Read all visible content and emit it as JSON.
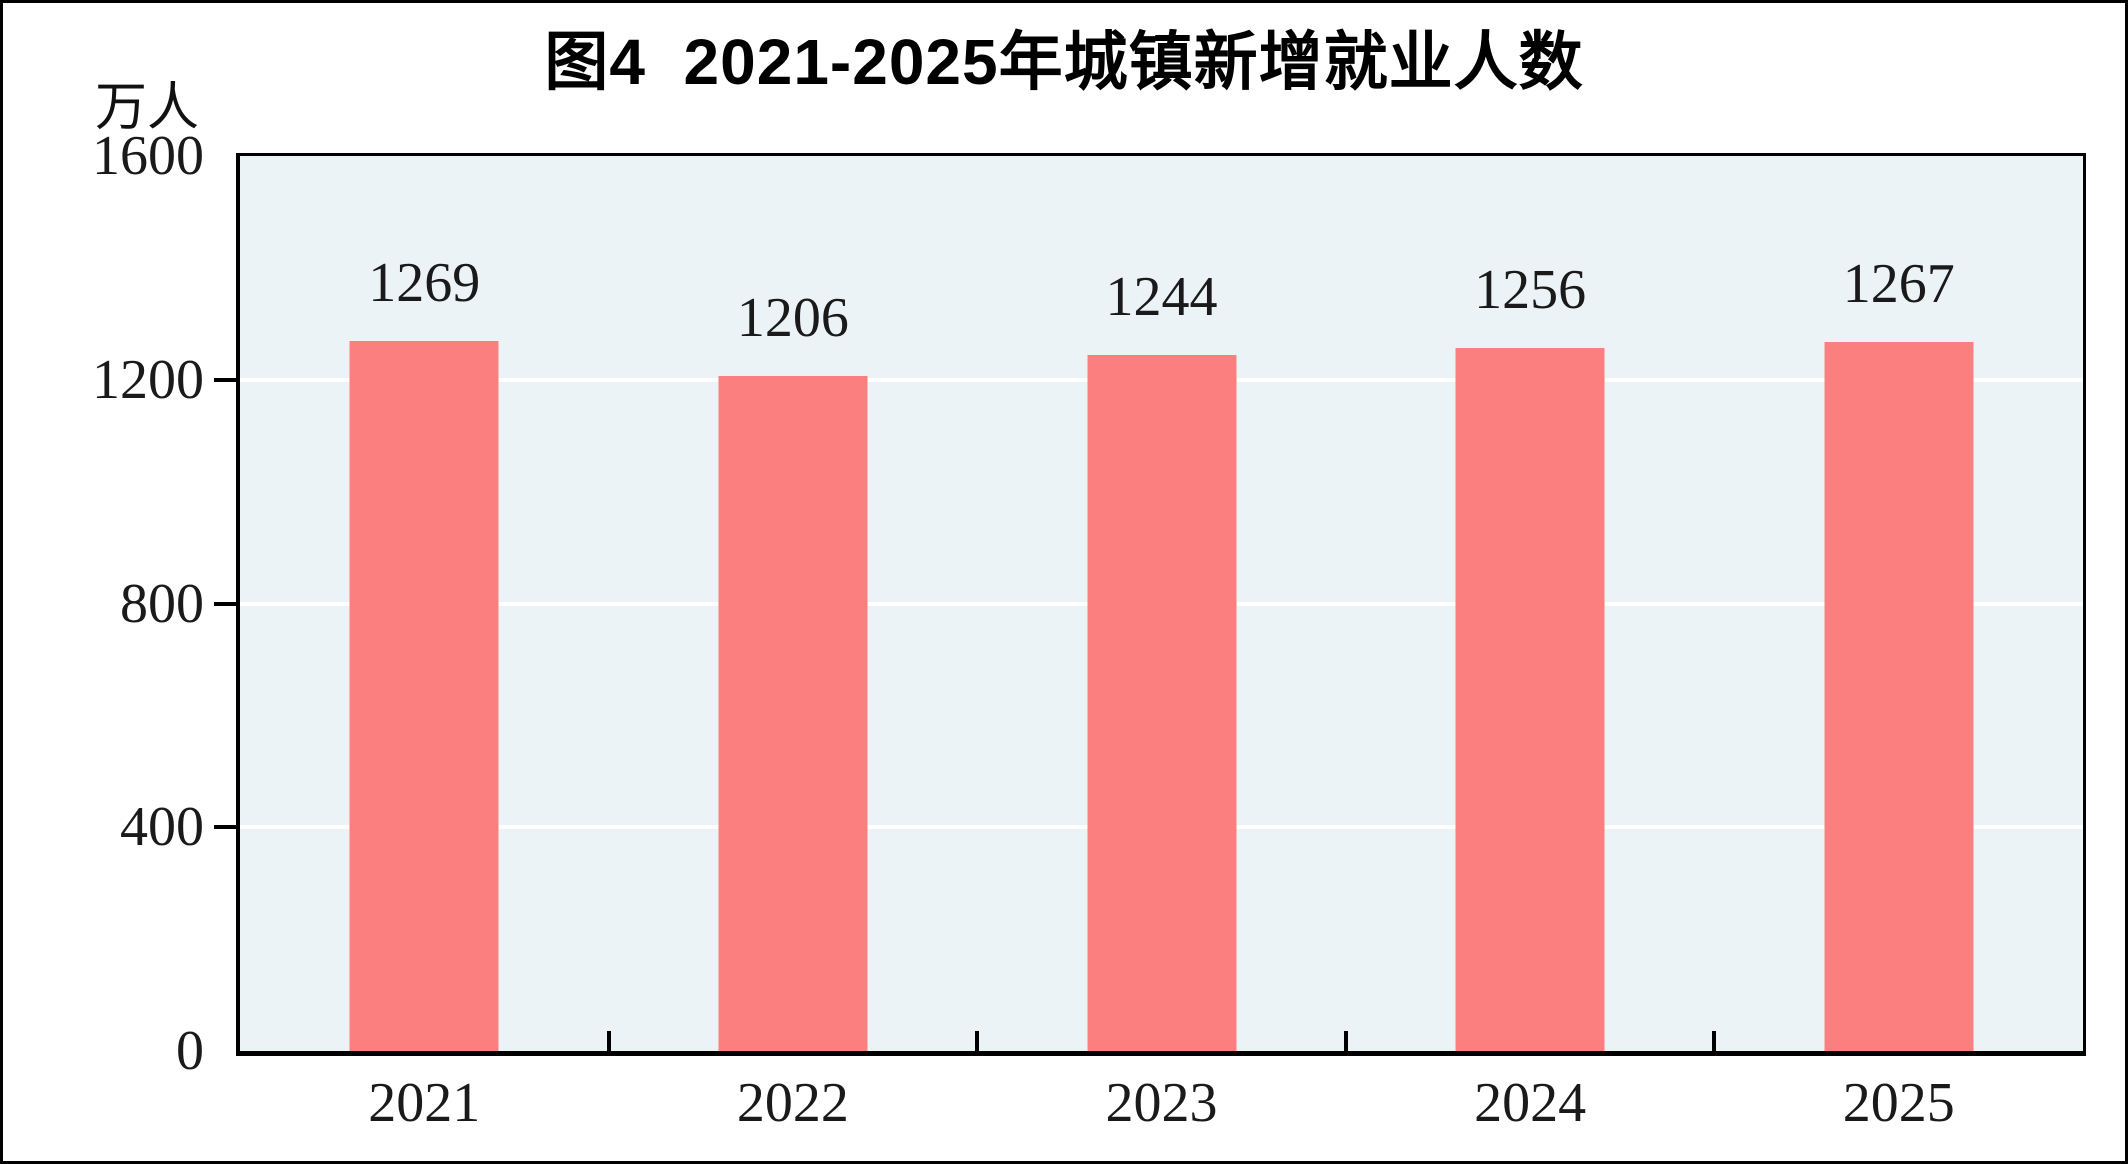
{
  "chart_data": {
    "type": "bar",
    "title": "图4  2021-2025年城镇新增就业人数",
    "unit_label": "万人",
    "categories": [
      "2021",
      "2022",
      "2023",
      "2024",
      "2025"
    ],
    "values": [
      1269,
      1206,
      1244,
      1256,
      1267
    ],
    "xlabel": "",
    "ylabel": "万人",
    "ylim": [
      0,
      1600
    ],
    "yticks": [
      0,
      400,
      800,
      1200,
      1600
    ],
    "grid": "horizontal gridlines at 400, 800, 1200",
    "legend_position": "none",
    "colors": {
      "bar_fill": "#FB7F7F",
      "plot_background": "#ECF3F7",
      "gridline": "#FFFFFF",
      "axis": "#000000",
      "text": "#1a1a1a",
      "page_background": "#FFFFFF"
    }
  }
}
